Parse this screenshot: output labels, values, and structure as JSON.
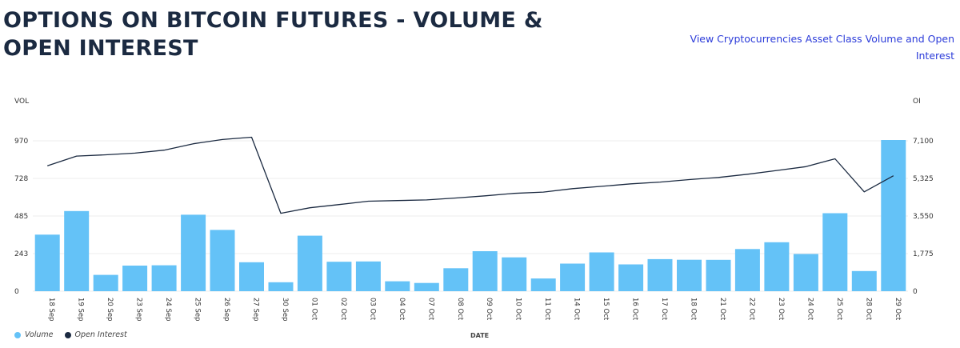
{
  "header": {
    "title": "OPTIONS ON BITCOIN FUTURES - VOLUME & OPEN INTEREST",
    "link_label": "View Cryptocurrencies Asset Class Volume and Open Interest"
  },
  "axis_units": {
    "left": "VOL",
    "right": "OI"
  },
  "legend": {
    "volume_label": "Volume",
    "oi_label": "Open Interest"
  },
  "colors": {
    "volume": "#64c2f7",
    "open_interest": "#1b2a41",
    "grid": "#ececec",
    "link": "#2b3bd9"
  },
  "chart_data": {
    "type": "bar",
    "title": "OPTIONS ON BITCOIN FUTURES - VOLUME & OPEN INTEREST",
    "xlabel": "DATE",
    "ylabel": "VOL",
    "y2label": "OI",
    "categories": [
      "18 Sep",
      "19 Sep",
      "20 Sep",
      "23 Sep",
      "24 Sep",
      "25 Sep",
      "26 Sep",
      "27 Sep",
      "30 Sep",
      "01 Oct",
      "02 Oct",
      "03 Oct",
      "04 Oct",
      "07 Oct",
      "08 Oct",
      "09 Oct",
      "10 Oct",
      "11 Oct",
      "14 Oct",
      "15 Oct",
      "16 Oct",
      "17 Oct",
      "18 Oct",
      "21 Oct",
      "22 Oct",
      "23 Oct",
      "24 Oct",
      "25 Oct",
      "28 Oct",
      "29 Oct"
    ],
    "ylim": [
      0,
      970
    ],
    "y_ticks": [
      "0",
      "243",
      "485",
      "728",
      "970"
    ],
    "y2lim": [
      0,
      7100
    ],
    "y2_ticks": [
      "0",
      "1,775",
      "3,550",
      "5,325",
      "7,100"
    ],
    "grid": true,
    "legend_position": "bottom-left",
    "series": [
      {
        "name": "Volume",
        "type": "bar",
        "axis": "left",
        "values": [
          365,
          517,
          105,
          165,
          167,
          493,
          395,
          187,
          58,
          358,
          190,
          192,
          64,
          53,
          148,
          258,
          218,
          82,
          178,
          250,
          173,
          207,
          203,
          202,
          272,
          316,
          240,
          503,
          130,
          975
        ]
      },
      {
        "name": "Open Interest",
        "type": "line",
        "axis": "right",
        "values": [
          5920,
          6380,
          6440,
          6520,
          6660,
          6960,
          7160,
          7270,
          3680,
          3940,
          4090,
          4250,
          4280,
          4310,
          4400,
          4500,
          4620,
          4680,
          4840,
          4950,
          5070,
          5150,
          5270,
          5370,
          5520,
          5700,
          5880,
          6250,
          4690,
          5450
        ]
      }
    ]
  }
}
